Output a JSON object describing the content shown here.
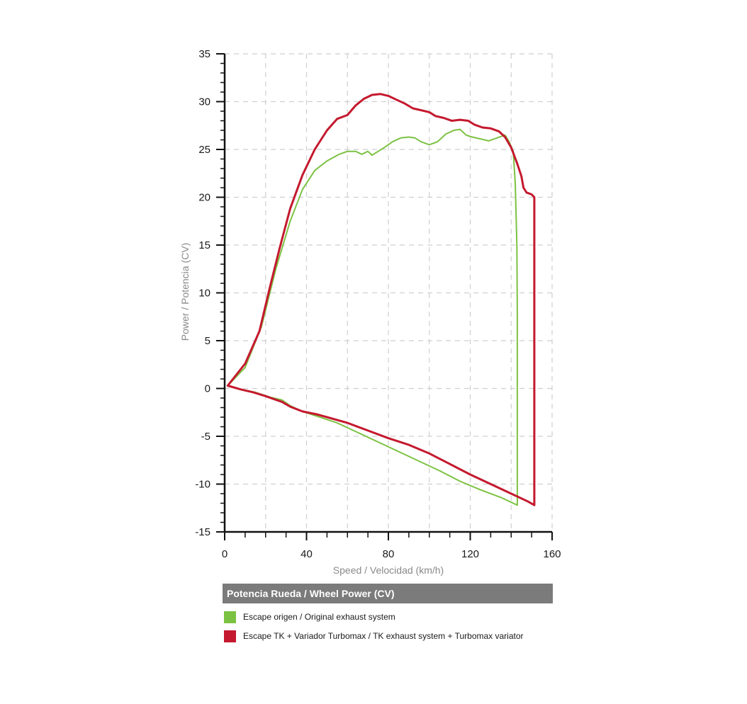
{
  "chart_data": {
    "type": "line",
    "xlabel": "Speed / Velocidad (km/h)",
    "ylabel": "Power / Potencia (CV)",
    "xlim": [
      0,
      160
    ],
    "ylim": [
      -15,
      35
    ],
    "x_ticks": [
      0,
      40,
      80,
      120,
      160
    ],
    "y_ticks": [
      -15,
      -10,
      -5,
      0,
      5,
      10,
      15,
      20,
      25,
      30,
      35
    ],
    "grid": true,
    "legend_title": "Potencia Rueda / Wheel Power (CV)",
    "legend_position": "bottom",
    "series": [
      {
        "name": "Escape origen / Original exhaust system",
        "color": "#7cc242",
        "points": [
          [
            1.5,
            0.3
          ],
          [
            10,
            2.2
          ],
          [
            18,
            6.5
          ],
          [
            25,
            12.5
          ],
          [
            32,
            17.5
          ],
          [
            38,
            20.8
          ],
          [
            44,
            22.8
          ],
          [
            50,
            23.8
          ],
          [
            56,
            24.5
          ],
          [
            60,
            24.8
          ],
          [
            64,
            24.8
          ],
          [
            67,
            24.5
          ],
          [
            70,
            24.8
          ],
          [
            72,
            24.4
          ],
          [
            75,
            24.8
          ],
          [
            78,
            25.2
          ],
          [
            82,
            25.8
          ],
          [
            86,
            26.2
          ],
          [
            90,
            26.3
          ],
          [
            93,
            26.2
          ],
          [
            96,
            25.8
          ],
          [
            100,
            25.5
          ],
          [
            104,
            25.8
          ],
          [
            108,
            26.6
          ],
          [
            112,
            27.0
          ],
          [
            115,
            27.1
          ],
          [
            118,
            26.5
          ],
          [
            121,
            26.3
          ],
          [
            125,
            26.1
          ],
          [
            129,
            25.9
          ],
          [
            133,
            26.2
          ],
          [
            137,
            26.5
          ],
          [
            139,
            25.8
          ],
          [
            141,
            24.8
          ],
          [
            142,
            21.5
          ],
          [
            142.8,
            15
          ],
          [
            143,
            8
          ],
          [
            143,
            0
          ],
          [
            143,
            -6
          ],
          [
            143,
            -12.2
          ],
          [
            135,
            -11.4
          ],
          [
            125,
            -10.6
          ],
          [
            115,
            -9.7
          ],
          [
            105,
            -8.6
          ],
          [
            95,
            -7.6
          ],
          [
            85,
            -6.6
          ],
          [
            75,
            -5.6
          ],
          [
            65,
            -4.6
          ],
          [
            55,
            -3.6
          ],
          [
            45,
            -2.9
          ],
          [
            38,
            -2.4
          ],
          [
            32,
            -1.8
          ],
          [
            28,
            -1.2
          ],
          [
            22,
            -0.9
          ],
          [
            15,
            -0.4
          ],
          [
            8,
            -0.1
          ],
          [
            1.5,
            0.3
          ]
        ]
      },
      {
        "name": "Escape TK + Variador Turbomax  / TK exhaust  system + Turbomax variator",
        "color": "#c4192e",
        "points": [
          [
            1.5,
            0.3
          ],
          [
            10,
            2.6
          ],
          [
            17,
            6.0
          ],
          [
            22,
            10.5
          ],
          [
            27,
            14.8
          ],
          [
            32,
            18.8
          ],
          [
            38,
            22.3
          ],
          [
            44,
            25.0
          ],
          [
            50,
            27.0
          ],
          [
            55,
            28.2
          ],
          [
            60,
            28.6
          ],
          [
            64,
            29.6
          ],
          [
            68,
            30.3
          ],
          [
            72,
            30.7
          ],
          [
            76,
            30.8
          ],
          [
            80,
            30.6
          ],
          [
            84,
            30.2
          ],
          [
            88,
            29.8
          ],
          [
            92,
            29.3
          ],
          [
            96,
            29.1
          ],
          [
            100,
            28.9
          ],
          [
            103,
            28.5
          ],
          [
            107,
            28.3
          ],
          [
            111,
            28.0
          ],
          [
            115,
            28.1
          ],
          [
            119,
            28.0
          ],
          [
            122,
            27.6
          ],
          [
            126,
            27.3
          ],
          [
            130,
            27.2
          ],
          [
            134,
            26.9
          ],
          [
            137,
            26.3
          ],
          [
            140,
            25.2
          ],
          [
            143,
            23.5
          ],
          [
            145,
            22.2
          ],
          [
            146,
            21.0
          ],
          [
            147.5,
            20.5
          ],
          [
            150,
            20.3
          ],
          [
            151.3,
            20.0
          ],
          [
            151.3,
            10
          ],
          [
            151.3,
            0
          ],
          [
            151.3,
            -12.2
          ],
          [
            148,
            -11.8
          ],
          [
            140,
            -11.0
          ],
          [
            130,
            -10.0
          ],
          [
            120,
            -9.0
          ],
          [
            110,
            -7.9
          ],
          [
            100,
            -6.8
          ],
          [
            90,
            -5.9
          ],
          [
            80,
            -5.2
          ],
          [
            70,
            -4.4
          ],
          [
            60,
            -3.6
          ],
          [
            50,
            -3.0
          ],
          [
            45,
            -2.7
          ],
          [
            38,
            -2.4
          ],
          [
            32,
            -1.9
          ],
          [
            28,
            -1.4
          ],
          [
            24,
            -1.1
          ],
          [
            20,
            -0.8
          ],
          [
            14,
            -0.4
          ],
          [
            8,
            -0.1
          ],
          [
            1.5,
            0.3
          ]
        ]
      }
    ]
  }
}
